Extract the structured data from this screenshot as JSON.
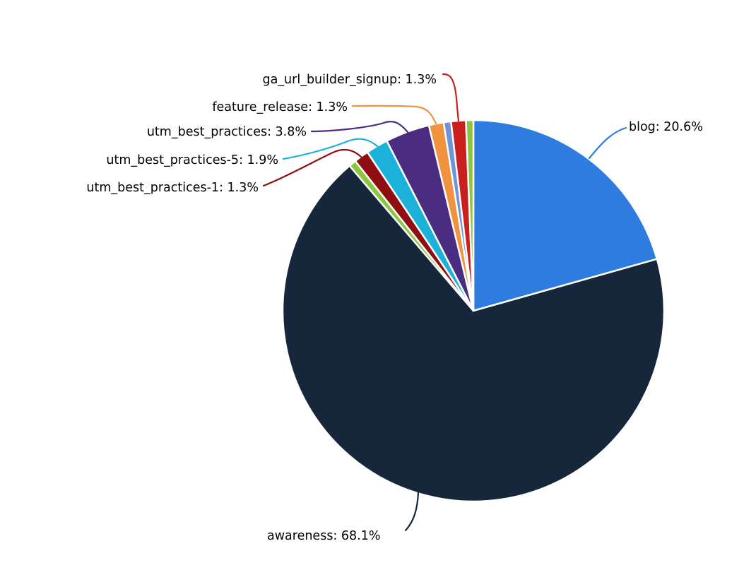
{
  "chart_data": {
    "type": "pie",
    "title": "",
    "legend": "none",
    "background": "#ffffff",
    "slice_border_color": "#ffffff",
    "label_text_color": "#000000",
    "start_angle": "top, clockwise",
    "slices": [
      {
        "label": "blog",
        "pct": 20.625,
        "display": "blog: 20.6%",
        "color": "#2E7CDF",
        "labeled": true
      },
      {
        "label": "awareness",
        "pct": 68.125,
        "display": "awareness: 68.1%",
        "color": "#16273B",
        "labeled": true
      },
      {
        "label": "",
        "pct": 0.625,
        "display": "",
        "color": "#8CC63E",
        "labeled": false
      },
      {
        "label": "utm_best_practices-1",
        "pct": 1.25,
        "display": "utm_best_practices-1: 1.3%",
        "color": "#8E0E12",
        "labeled": true
      },
      {
        "label": "utm_best_practices-5",
        "pct": 1.875,
        "display": "utm_best_practices-5: 1.9%",
        "color": "#1BB1D8",
        "labeled": true
      },
      {
        "label": "utm_best_practices",
        "pct": 3.75,
        "display": "utm_best_practices: 3.8%",
        "color": "#4A2D80",
        "labeled": true
      },
      {
        "label": "feature_release",
        "pct": 1.25,
        "display": "feature_release: 1.3%",
        "color": "#F0923E",
        "labeled": true
      },
      {
        "label": "",
        "pct": 0.625,
        "display": "",
        "color": "#7193D8",
        "labeled": false
      },
      {
        "label": "ga_url_builder_signup",
        "pct": 1.25,
        "display": "ga_url_builder_signup: 1.3%",
        "color": "#C9201E",
        "labeled": true
      },
      {
        "label": "",
        "pct": 0.625,
        "display": "",
        "color": "#8CC63E",
        "labeled": false
      }
    ]
  }
}
